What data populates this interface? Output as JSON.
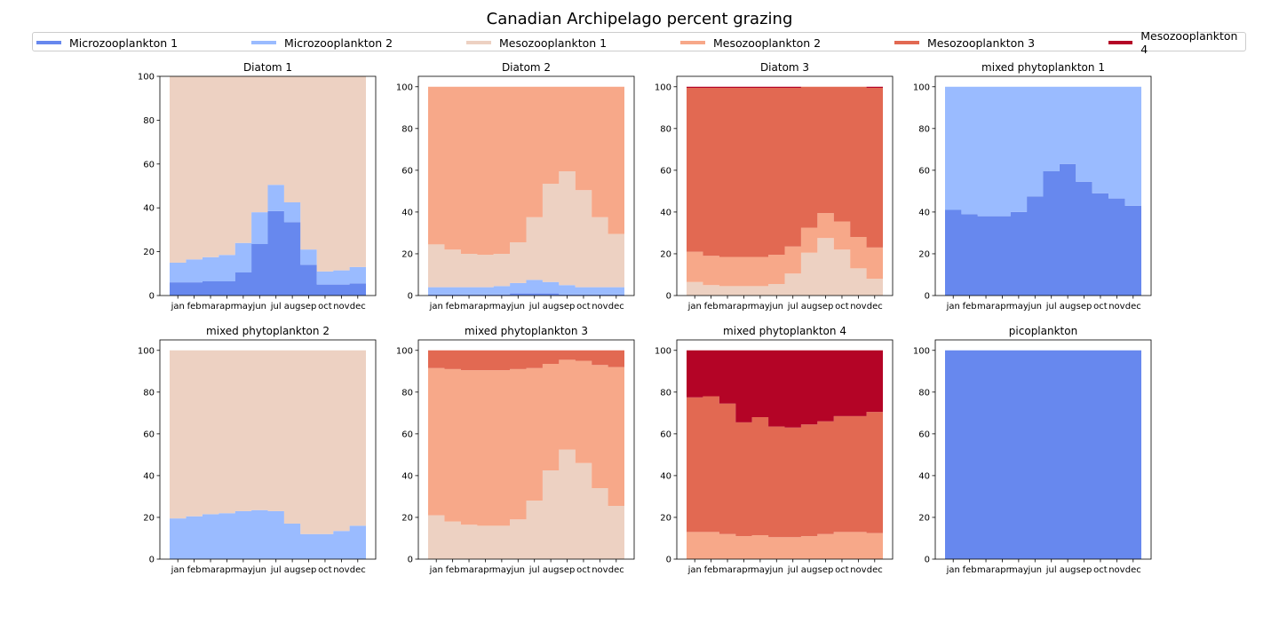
{
  "title": "Canadian Archipelago percent grazing",
  "legend": [
    {
      "name": "Microzooplankton 1",
      "color": "#6788ee"
    },
    {
      "name": "Microzooplankton 2",
      "color": "#9abbff"
    },
    {
      "name": "Mesozooplankton 1",
      "color": "#edd1c2"
    },
    {
      "name": "Mesozooplankton 2",
      "color": "#f7a889"
    },
    {
      "name": "Mesozooplankton 3",
      "color": "#e26952"
    },
    {
      "name": "Mesozooplankton 4",
      "color": "#b40426"
    }
  ],
  "chart_data": [
    {
      "type": "area",
      "title": "Diatom 1",
      "categories": [
        "jan",
        "feb",
        "mar",
        "apr",
        "may",
        "jun",
        "jul",
        "aug",
        "sep",
        "oct",
        "nov",
        "dec"
      ],
      "ylim": [
        0,
        100
      ],
      "yticks": [
        0,
        20,
        40,
        60,
        80,
        100
      ],
      "series": [
        {
          "name": "Microzooplankton 1",
          "values": [
            6,
            6,
            6.5,
            6.5,
            10.5,
            23.5,
            38.5,
            33.5,
            14,
            5,
            5,
            5.5
          ]
        },
        {
          "name": "Microzooplankton 2",
          "values": [
            9,
            10.5,
            11,
            12,
            13.5,
            14.5,
            12,
            9,
            7,
            6,
            6.5,
            7.5
          ]
        },
        {
          "name": "Mesozooplankton 1",
          "values": [
            85,
            83.5,
            82.5,
            81.5,
            76,
            62,
            49.5,
            57.5,
            79,
            89,
            88.5,
            87
          ]
        }
      ]
    },
    {
      "type": "area",
      "title": "Diatom 2",
      "categories": [
        "jan",
        "feb",
        "mar",
        "apr",
        "may",
        "jun",
        "jul",
        "aug",
        "sep",
        "oct",
        "nov",
        "dec"
      ],
      "ylim": [
        0,
        105
      ],
      "yticks": [
        0,
        20,
        40,
        60,
        80,
        100
      ],
      "series": [
        {
          "name": "Microzooplankton 1",
          "values": [
            0.5,
            0.5,
            0.5,
            0.5,
            0.5,
            1,
            1,
            1,
            0.5,
            0.5,
            0.5,
            0.5
          ]
        },
        {
          "name": "Microzooplankton 2",
          "values": [
            3.5,
            3.5,
            3.5,
            3.5,
            4,
            5,
            6.5,
            5.5,
            4.5,
            3.5,
            3.5,
            3.5
          ]
        },
        {
          "name": "Mesozooplankton 1",
          "values": [
            20.5,
            18,
            16,
            15.5,
            15.5,
            19.5,
            30,
            47,
            54.5,
            46.5,
            33.5,
            25.5
          ]
        },
        {
          "name": "Mesozooplankton 2",
          "values": [
            75.5,
            78,
            80,
            80.5,
            80,
            74.5,
            62.5,
            46.5,
            40.5,
            49.5,
            62.5,
            70.5
          ]
        }
      ]
    },
    {
      "type": "area",
      "title": "Diatom 3",
      "categories": [
        "jan",
        "feb",
        "mar",
        "apr",
        "may",
        "jun",
        "jul",
        "aug",
        "sep",
        "oct",
        "nov",
        "dec"
      ],
      "ylim": [
        0,
        105
      ],
      "yticks": [
        0,
        20,
        40,
        60,
        80,
        100
      ],
      "series": [
        {
          "name": "Mesozooplankton 1",
          "values": [
            6.5,
            5,
            4.5,
            4.5,
            4.5,
            5.5,
            10.5,
            20.5,
            27.5,
            22,
            13,
            8
          ]
        },
        {
          "name": "Mesozooplankton 2",
          "values": [
            14.5,
            14,
            14,
            14,
            14,
            14,
            13,
            12,
            12,
            13.5,
            15,
            15
          ]
        },
        {
          "name": "Mesozooplankton 3",
          "values": [
            78.5,
            80.5,
            81,
            81,
            81,
            80,
            76,
            67.5,
            60.5,
            64.5,
            72,
            76.5
          ]
        },
        {
          "name": "Mesozooplankton 4",
          "values": [
            0.5,
            0.5,
            0.5,
            0.5,
            0.5,
            0.5,
            0.5,
            0,
            0,
            0,
            0,
            0.5
          ]
        }
      ]
    },
    {
      "type": "area",
      "title": "mixed phytoplankton 1",
      "categories": [
        "jan",
        "feb",
        "mar",
        "apr",
        "may",
        "jun",
        "jul",
        "aug",
        "sep",
        "oct",
        "nov",
        "dec"
      ],
      "ylim": [
        0,
        105
      ],
      "yticks": [
        0,
        20,
        40,
        60,
        80,
        100
      ],
      "series": [
        {
          "name": "Microzooplankton 1",
          "values": [
            41,
            39,
            38,
            38,
            40,
            47.5,
            59.5,
            63,
            54.5,
            49,
            46.5,
            43
          ]
        },
        {
          "name": "Microzooplankton 2",
          "values": [
            59,
            61,
            62,
            62,
            60,
            52.5,
            40.5,
            37,
            45.5,
            51,
            53.5,
            57
          ]
        }
      ]
    },
    {
      "type": "area",
      "title": "mixed phytoplankton 2",
      "categories": [
        "jan",
        "feb",
        "mar",
        "apr",
        "may",
        "jun",
        "jul",
        "aug",
        "sep",
        "oct",
        "nov",
        "dec"
      ],
      "ylim": [
        0,
        105
      ],
      "yticks": [
        0,
        20,
        40,
        60,
        80,
        100
      ],
      "series": [
        {
          "name": "Microzooplankton 2",
          "values": [
            19.5,
            20.5,
            21.5,
            22,
            23,
            23.5,
            23,
            17,
            12,
            12,
            13.5,
            16
          ]
        },
        {
          "name": "Mesozooplankton 1",
          "values": [
            80.5,
            79.5,
            78.5,
            78,
            77,
            76.5,
            77,
            83,
            88,
            88,
            86.5,
            84
          ]
        }
      ]
    },
    {
      "type": "area",
      "title": "mixed phytoplankton 3",
      "categories": [
        "jan",
        "feb",
        "mar",
        "apr",
        "may",
        "jun",
        "jul",
        "aug",
        "sep",
        "oct",
        "nov",
        "dec"
      ],
      "ylim": [
        0,
        105
      ],
      "yticks": [
        0,
        20,
        40,
        60,
        80,
        100
      ],
      "series": [
        {
          "name": "Mesozooplankton 1",
          "values": [
            21,
            18,
            16.5,
            16,
            16,
            19,
            28,
            42.5,
            52.5,
            46,
            34,
            25.5
          ]
        },
        {
          "name": "Mesozooplankton 2",
          "values": [
            70.5,
            73,
            74,
            74.5,
            74.5,
            72,
            63.5,
            51,
            43,
            49,
            59,
            66.5
          ]
        },
        {
          "name": "Mesozooplankton 3",
          "values": [
            8.5,
            9,
            9.5,
            9.5,
            9.5,
            9,
            8.5,
            6.5,
            4.5,
            5,
            7,
            8
          ]
        }
      ]
    },
    {
      "type": "area",
      "title": "mixed phytoplankton 4",
      "categories": [
        "jan",
        "feb",
        "mar",
        "apr",
        "may",
        "jun",
        "jul",
        "aug",
        "sep",
        "oct",
        "nov",
        "dec"
      ],
      "ylim": [
        0,
        105
      ],
      "yticks": [
        0,
        20,
        40,
        60,
        80,
        100
      ],
      "series": [
        {
          "name": "Mesozooplankton 2",
          "values": [
            13,
            13,
            12,
            11,
            11.5,
            10.5,
            10.5,
            11,
            12,
            13,
            13,
            12.5
          ]
        },
        {
          "name": "Mesozooplankton 3",
          "values": [
            64.5,
            65,
            62.5,
            54.5,
            56.5,
            53,
            52.5,
            53.5,
            54,
            55.5,
            55.5,
            58
          ]
        },
        {
          "name": "Mesozooplankton 4",
          "values": [
            22.5,
            22,
            25.5,
            34.5,
            32,
            36.5,
            37,
            35.5,
            34,
            31.5,
            31.5,
            29.5
          ]
        }
      ]
    },
    {
      "type": "area",
      "title": "picoplankton",
      "categories": [
        "jan",
        "feb",
        "mar",
        "apr",
        "may",
        "jun",
        "jul",
        "aug",
        "sep",
        "oct",
        "nov",
        "dec"
      ],
      "ylim": [
        0,
        105
      ],
      "yticks": [
        0,
        20,
        40,
        60,
        80,
        100
      ],
      "series": [
        {
          "name": "Microzooplankton 1",
          "values": [
            100,
            100,
            100,
            100,
            100,
            100,
            100,
            100,
            100,
            100,
            100,
            100
          ]
        }
      ]
    }
  ]
}
